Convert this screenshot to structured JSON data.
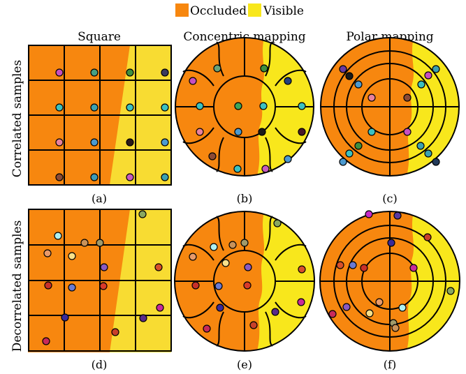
{
  "legend": {
    "occluded": "Occluded",
    "visible": "Visible"
  },
  "columns": {
    "square": "Square",
    "concentric": "Concentric mapping",
    "polar": "Polar mapping"
  },
  "rows": {
    "correlated": "Correlated samples",
    "decorrelated": "Decorrelated samples"
  },
  "captions": {
    "a": "(a)",
    "b": "(b)",
    "c": "(c)",
    "d": "(d)",
    "e": "(e)",
    "f": "(f)"
  },
  "colors": {
    "occluded": "#f7870f",
    "visible": "#f8e71c",
    "visible_square": "#f8dc32",
    "frame": "#000000"
  }
}
